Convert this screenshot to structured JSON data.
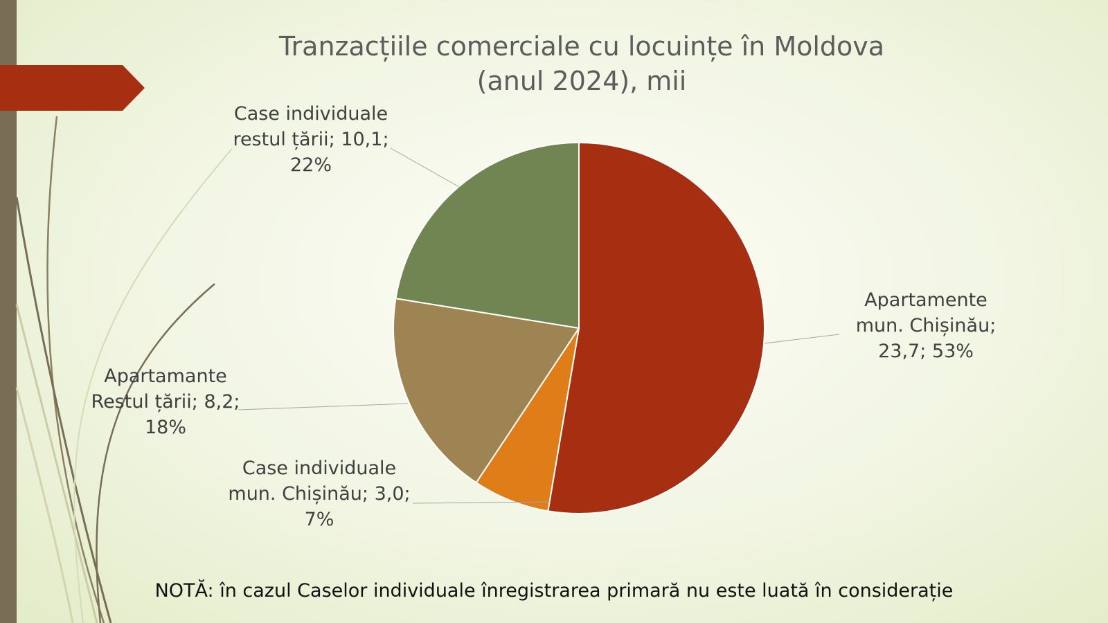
{
  "chart_data": {
    "type": "pie",
    "title_lines": [
      "Tranzacțiile comerciale cu locuințe în Moldova",
      "(anul 2024), mii"
    ],
    "slices": [
      {
        "label_lines": [
          "Apartamente",
          "mun. Chișinău;",
          "23,7; 53%"
        ],
        "value": 23.7,
        "percent": 53,
        "color": "#a62e11"
      },
      {
        "label_lines": [
          "Case individuale",
          "mun. Chișinău; 3,0;",
          "7%"
        ],
        "value": 3.0,
        "percent": 7,
        "color": "#df7d19"
      },
      {
        "label_lines": [
          "Apartamante",
          "Restul țării; 8,2;",
          "18%"
        ],
        "value": 8.2,
        "percent": 18,
        "color": "#9f8453"
      },
      {
        "label_lines": [
          "Case individuale",
          "restul țării; 10,1;",
          "22%"
        ],
        "value": 10.1,
        "percent": 22,
        "color": "#718553"
      }
    ],
    "legend": "none",
    "data_labels": "outside with leader lines"
  },
  "note": "NOTĂ: în cazul Caselor individuale înregistrarea primară nu este luată în considerație",
  "decor": {
    "bar_color": "#776e55",
    "tab_color": "#a62e11"
  }
}
